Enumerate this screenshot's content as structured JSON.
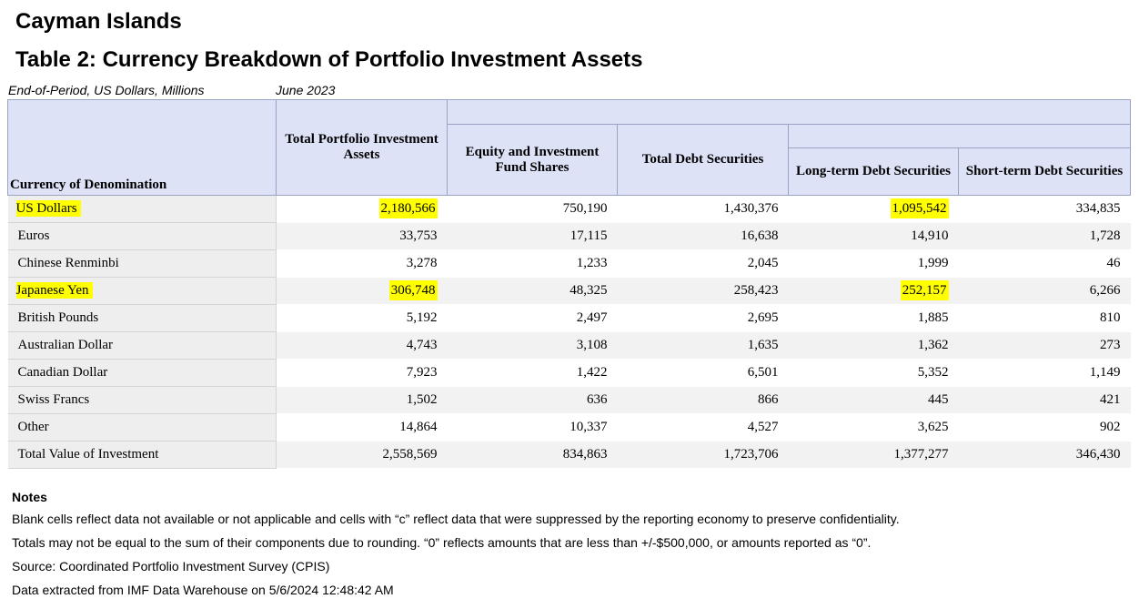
{
  "country": "Cayman Islands",
  "table_title": "Table 2: Currency Breakdown of Portfolio Investment Assets",
  "subtitle_unit": "End-of-Period, US Dollars, Millions",
  "subtitle_period": "June 2023",
  "headers": {
    "currency": "Currency of Denomination",
    "total_portfolio": "Total Portfolio Investment Assets",
    "equity": "Equity and Investment Fund Shares",
    "total_debt": "Total Debt Securities",
    "long_term": "Long-term Debt Securities",
    "short_term": "Short-term Debt Securities"
  },
  "rows": [
    {
      "currency": "US Dollars",
      "total": "2,180,566",
      "equity": "750,190",
      "debt": "1,430,376",
      "long": "1,095,542",
      "short": "334,835"
    },
    {
      "currency": "Euros",
      "total": "33,753",
      "equity": "17,115",
      "debt": "16,638",
      "long": "14,910",
      "short": "1,728"
    },
    {
      "currency": "Chinese Renminbi",
      "total": "3,278",
      "equity": "1,233",
      "debt": "2,045",
      "long": "1,999",
      "short": "46"
    },
    {
      "currency": "Japanese Yen",
      "total": "306,748",
      "equity": "48,325",
      "debt": "258,423",
      "long": "252,157",
      "short": "6,266"
    },
    {
      "currency": "British Pounds",
      "total": "5,192",
      "equity": "2,497",
      "debt": "2,695",
      "long": "1,885",
      "short": "810"
    },
    {
      "currency": "Australian Dollar",
      "total": "4,743",
      "equity": "3,108",
      "debt": "1,635",
      "long": "1,362",
      "short": "273"
    },
    {
      "currency": "Canadian Dollar",
      "total": "7,923",
      "equity": "1,422",
      "debt": "6,501",
      "long": "5,352",
      "short": "1,149"
    },
    {
      "currency": "Swiss Francs",
      "total": "1,502",
      "equity": "636",
      "debt": "866",
      "long": "445",
      "short": "421"
    },
    {
      "currency": "Other",
      "total": "14,864",
      "equity": "10,337",
      "debt": "4,527",
      "long": "3,625",
      "short": "902"
    },
    {
      "currency": "Total Value of Investment",
      "total": "2,558,569",
      "equity": "834,863",
      "debt": "1,723,706",
      "long": "1,377,277",
      "short": "346,430"
    }
  ],
  "highlight_color": "#ffff00",
  "notes": {
    "title": "Notes",
    "line1": "Blank cells reflect data not available or not applicable and cells with “c” reflect data that were suppressed by the reporting economy to preserve confidentiality.",
    "line2": "Totals may not be equal to the sum of their components due to rounding. “0” reflects amounts that are less than +/-$500,000, or amounts reported as “0”.",
    "line3": "Source: Coordinated Portfolio Investment Survey (CPIS)",
    "line4": "Data extracted from IMF Data Warehouse on 5/6/2024 12:48:42 AM"
  }
}
